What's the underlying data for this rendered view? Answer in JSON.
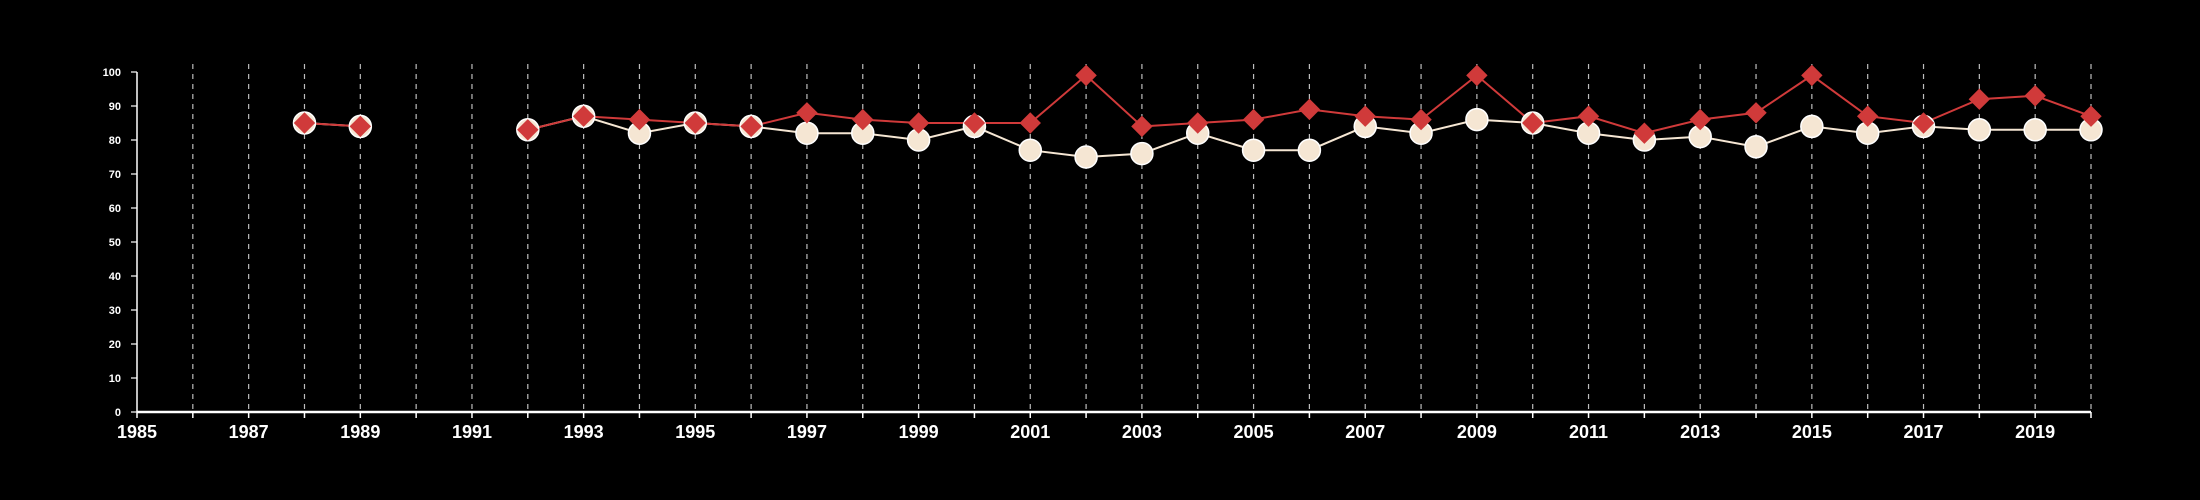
{
  "chart_data": {
    "type": "line",
    "title": "",
    "xlabel": "",
    "ylabel": "",
    "xlim": [
      1985,
      2020
    ],
    "ylim": [
      0,
      100
    ],
    "xticks": [
      1985,
      1987,
      1989,
      1991,
      1993,
      1995,
      1997,
      1999,
      2001,
      2003,
      2005,
      2007,
      2009,
      2011,
      2013,
      2015,
      2017,
      2019
    ],
    "yticks": [
      0,
      10,
      20,
      30,
      40,
      50,
      60,
      70,
      80,
      90,
      100
    ],
    "grid": "vertical dashed lines at every year",
    "legend": "none",
    "x": [
      1985,
      1986,
      1987,
      1988,
      1989,
      1990,
      1991,
      1992,
      1993,
      1994,
      1995,
      1996,
      1997,
      1998,
      1999,
      2000,
      2001,
      2002,
      2003,
      2004,
      2005,
      2006,
      2007,
      2008,
      2009,
      2010,
      2011,
      2012,
      2013,
      2014,
      2015,
      2016,
      2017,
      2018,
      2019,
      2020
    ],
    "series": [
      {
        "color": "#f5e6d3",
        "marker": "circle",
        "values": [
          null,
          null,
          null,
          85,
          84,
          null,
          null,
          83,
          87,
          82,
          85,
          84,
          82,
          82,
          80,
          84,
          77,
          75,
          76,
          82,
          77,
          77,
          84,
          82,
          86,
          85,
          82,
          80,
          81,
          78,
          84,
          82,
          84,
          83,
          83,
          83
        ]
      },
      {
        "color": "#d03a3a",
        "marker": "diamond",
        "values": [
          null,
          null,
          null,
          85,
          84,
          null,
          null,
          83,
          87,
          86,
          85,
          84,
          88,
          86,
          85,
          85,
          85,
          99,
          84,
          85,
          86,
          89,
          87,
          86,
          99,
          85,
          87,
          82,
          86,
          88,
          99,
          87,
          85,
          92,
          93,
          87
        ]
      }
    ]
  }
}
